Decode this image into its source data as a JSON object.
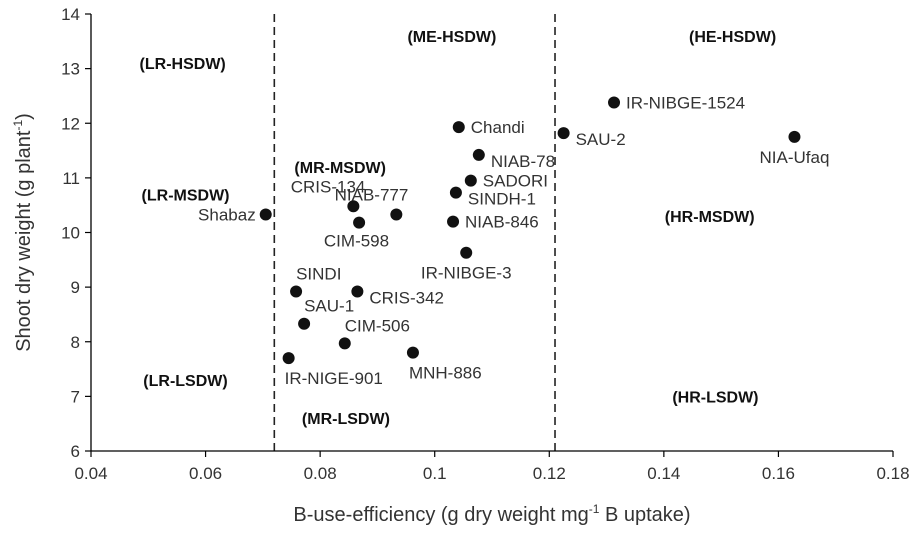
{
  "chart_data": {
    "type": "scatter",
    "xlabel": {
      "prefix": "B-use-efficiency (g dry weight mg",
      "sup": "-1",
      "suffix": " B uptake)"
    },
    "ylabel": {
      "prefix": "Shoot dry weight (g plant",
      "sup": "-1",
      "suffix": ")"
    },
    "xlim": [
      0.04,
      0.18
    ],
    "ylim": [
      6,
      14
    ],
    "xticks": [
      0.04,
      0.06,
      0.08,
      0.1,
      0.12,
      0.14,
      0.16,
      0.18
    ],
    "xtick_labels": [
      "0.04",
      "0.06",
      "0.08",
      "0.1",
      "0.12",
      "0.14",
      "0.16",
      "0.18"
    ],
    "yticks": [
      6,
      7,
      8,
      9,
      10,
      11,
      12,
      13,
      14
    ],
    "ytick_labels": [
      "6",
      "7",
      "8",
      "9",
      "10",
      "11",
      "12",
      "13",
      "14"
    ],
    "dividers_x": [
      0.072,
      0.121
    ],
    "grid": false,
    "regions": [
      {
        "label": "(LR-HSDW)",
        "x": 0.056,
        "y": 13.1
      },
      {
        "label": "(ME-HSDW)",
        "x": 0.103,
        "y": 13.6
      },
      {
        "label": "(HE-HSDW)",
        "x": 0.152,
        "y": 13.6
      },
      {
        "label": "(MR-MSDW)",
        "x": 0.0835,
        "y": 11.2
      },
      {
        "label": "(LR-MSDW)",
        "x": 0.0565,
        "y": 10.7
      },
      {
        "label": "(HR-MSDW)",
        "x": 0.148,
        "y": 10.3
      },
      {
        "label": "(LR-LSDW)",
        "x": 0.0565,
        "y": 7.3
      },
      {
        "label": "(MR-LSDW)",
        "x": 0.0845,
        "y": 6.6
      },
      {
        "label": "(HR-LSDW)",
        "x": 0.149,
        "y": 7.0
      }
    ],
    "points": [
      {
        "label": "Shabaz",
        "x": 0.0705,
        "y": 10.33,
        "lpos": "left"
      },
      {
        "label": "CRIS-134",
        "x": 0.0858,
        "y": 10.48,
        "lpos": "upper-left"
      },
      {
        "label": "CIM-598",
        "x": 0.0868,
        "y": 10.18,
        "lpos": "lower-left"
      },
      {
        "label": "NIAB-777",
        "x": 0.0933,
        "y": 10.33,
        "lpos": "upper-left"
      },
      {
        "label": "Chandi",
        "x": 0.1042,
        "y": 11.93,
        "lpos": "right"
      },
      {
        "label": "NIAB-78",
        "x": 0.1077,
        "y": 11.42,
        "lpos": "right-low"
      },
      {
        "label": "SADORI",
        "x": 0.1063,
        "y": 10.95,
        "lpos": "right"
      },
      {
        "label": "SINDH-1",
        "x": 0.1037,
        "y": 10.73,
        "lpos": "right-low"
      },
      {
        "label": "NIAB-846",
        "x": 0.1032,
        "y": 10.2,
        "lpos": "right"
      },
      {
        "label": "IR-NIBGE-3",
        "x": 0.1055,
        "y": 9.63,
        "lpos": "below-center"
      },
      {
        "label": "SINDI",
        "x": 0.0758,
        "y": 8.92,
        "lpos": "upper-right"
      },
      {
        "label": "CRIS-342",
        "x": 0.0865,
        "y": 8.92,
        "lpos": "right-low"
      },
      {
        "label": "SAU-1",
        "x": 0.0772,
        "y": 8.33,
        "lpos": "upper-right"
      },
      {
        "label": "CIM-506",
        "x": 0.0843,
        "y": 7.97,
        "lpos": "upper-right"
      },
      {
        "label": "IR-NIGE-901",
        "x": 0.0745,
        "y": 7.7,
        "lpos": "lower-right"
      },
      {
        "label": "MNH-886",
        "x": 0.0962,
        "y": 7.8,
        "lpos": "lower-right"
      },
      {
        "label": "IR-NIBGE-1524",
        "x": 0.1313,
        "y": 12.38,
        "lpos": "right"
      },
      {
        "label": "SAU-2",
        "x": 0.1225,
        "y": 11.82,
        "lpos": "right-low"
      },
      {
        "label": "NIA-Ufaq",
        "x": 0.1628,
        "y": 11.75,
        "lpos": "below-center"
      }
    ]
  }
}
